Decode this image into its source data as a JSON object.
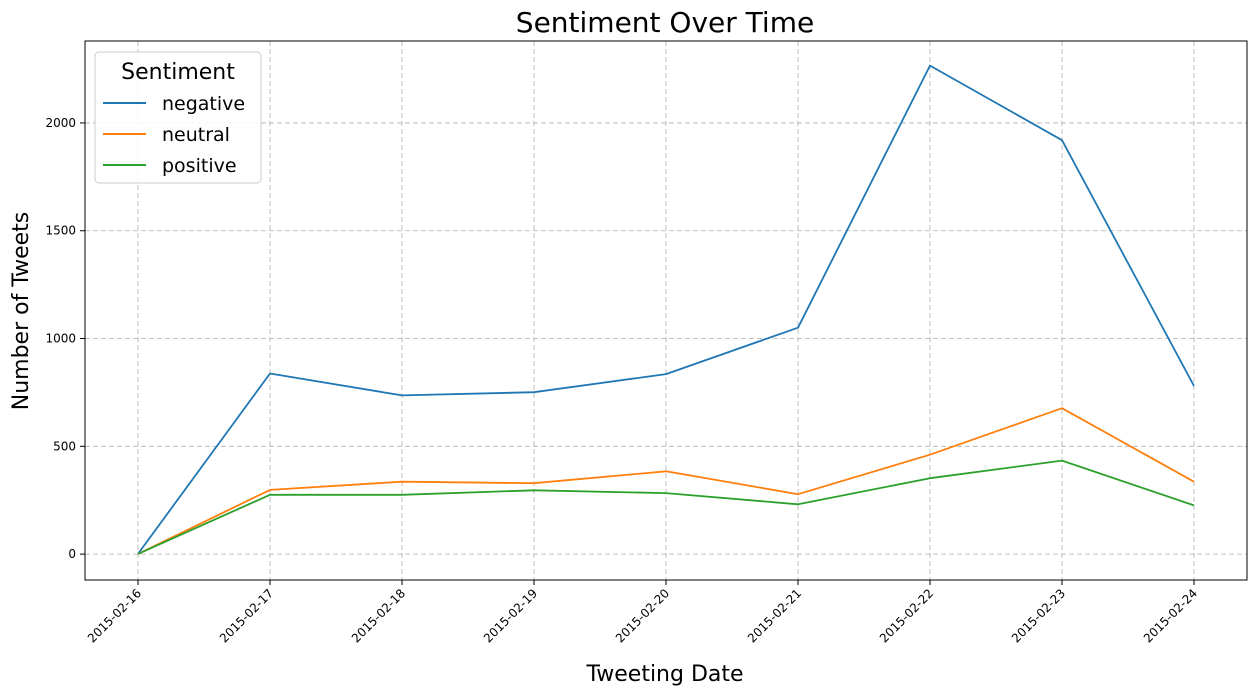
{
  "chart_data": {
    "type": "line",
    "title": "Sentiment Over Time",
    "xlabel": "Tweeting Date",
    "ylabel": "Number of Tweets",
    "x": [
      "2015-02-16",
      "2015-02-17",
      "2015-02-18",
      "2015-02-19",
      "2015-02-20",
      "2015-02-21",
      "2015-02-22",
      "2015-02-23",
      "2015-02-24"
    ],
    "y_ticks": [
      0,
      500,
      1000,
      1500,
      2000
    ],
    "ylim": [
      -120,
      2380
    ],
    "grid": true,
    "legend": {
      "title": "Sentiment",
      "placement": "top-left"
    },
    "series": [
      {
        "name": "negative",
        "color": "#1f77b4",
        "values": [
          1,
          838,
          736,
          751,
          835,
          1050,
          2266,
          1920,
          780
        ]
      },
      {
        "name": "neutral",
        "color": "#ff7f0e",
        "values": [
          1,
          298,
          336,
          329,
          384,
          278,
          461,
          677,
          336
        ]
      },
      {
        "name": "positive",
        "color": "#2ca02c",
        "values": [
          1,
          275,
          275,
          296,
          283,
          231,
          352,
          434,
          226
        ]
      }
    ]
  }
}
